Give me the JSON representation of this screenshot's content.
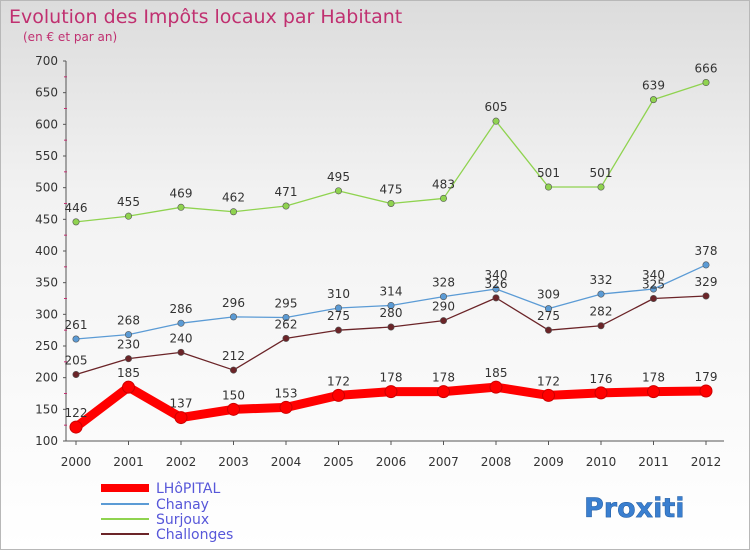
{
  "chart_data": {
    "type": "line",
    "title": "Evolution des Impôts locaux par Habitant",
    "subtitle": "(en € et par an)",
    "x": [
      "2000",
      "2001",
      "2002",
      "2003",
      "2004",
      "2005",
      "2006",
      "2007",
      "2008",
      "2009",
      "2010",
      "2011",
      "2012"
    ],
    "ylim": [
      100,
      700
    ],
    "yticks": [
      "100",
      "150",
      "200",
      "250",
      "300",
      "350",
      "400",
      "450",
      "500",
      "550",
      "600",
      "650",
      "700"
    ],
    "series": [
      {
        "name": "LHôPITAL",
        "color": "#ff0000",
        "values": [
          122,
          185,
          137,
          150,
          153,
          172,
          178,
          178,
          185,
          172,
          176,
          178,
          179
        ]
      },
      {
        "name": "Chanay",
        "color": "#5b9bd5",
        "values": [
          261,
          268,
          286,
          296,
          295,
          310,
          314,
          328,
          340,
          309,
          332,
          340,
          378
        ]
      },
      {
        "name": "Surjoux",
        "color": "#8fd34f",
        "values": [
          446,
          455,
          469,
          462,
          471,
          495,
          475,
          483,
          605,
          501,
          501,
          639,
          666
        ]
      },
      {
        "name": "Challonges",
        "color": "#6b2428",
        "values": [
          205,
          230,
          240,
          212,
          262,
          275,
          280,
          290,
          326,
          275,
          282,
          325,
          329
        ]
      }
    ],
    "legend_position": "bottom-left"
  },
  "logo": {
    "text": "Proxiti"
  }
}
